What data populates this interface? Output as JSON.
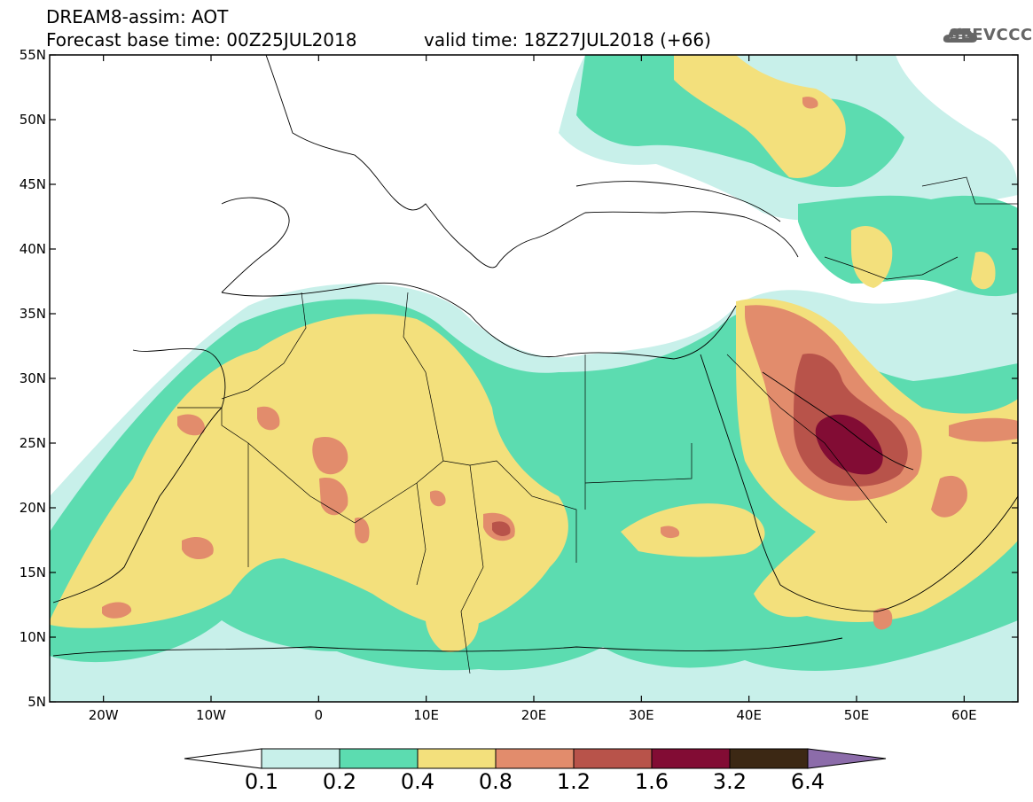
{
  "header": {
    "title": "DREAM8-assim: AOT",
    "base_time": "Forecast base time: 00Z25JUL2018",
    "valid_time": "valid time: 18Z27JUL2018 (+66)"
  },
  "logo": {
    "text": "SEEVCCC",
    "icon": "cloud-icon"
  },
  "map": {
    "projection": "equirectangular",
    "lon_range": [
      -25,
      65
    ],
    "lat_range": [
      5,
      55
    ],
    "lat_labels": [
      "55N",
      "50N",
      "45N",
      "40N",
      "35N",
      "30N",
      "25N",
      "20N",
      "15N",
      "10N",
      "5N"
    ],
    "lon_labels": [
      "20W",
      "10W",
      "0",
      "10E",
      "20E",
      "30E",
      "40E",
      "50E",
      "60E"
    ]
  },
  "colorbar": {
    "thresholds": [
      "0.1",
      "0.2",
      "0.4",
      "0.8",
      "1.2",
      "1.6",
      "3.2",
      "6.4"
    ],
    "colors": [
      "#c8f0ea",
      "#5cdcb0",
      "#f3e07c",
      "#e28c6c",
      "#b8534a",
      "#820c34",
      "#3c2814",
      "#8c6caa"
    ],
    "under_color": "#ffffff"
  }
}
